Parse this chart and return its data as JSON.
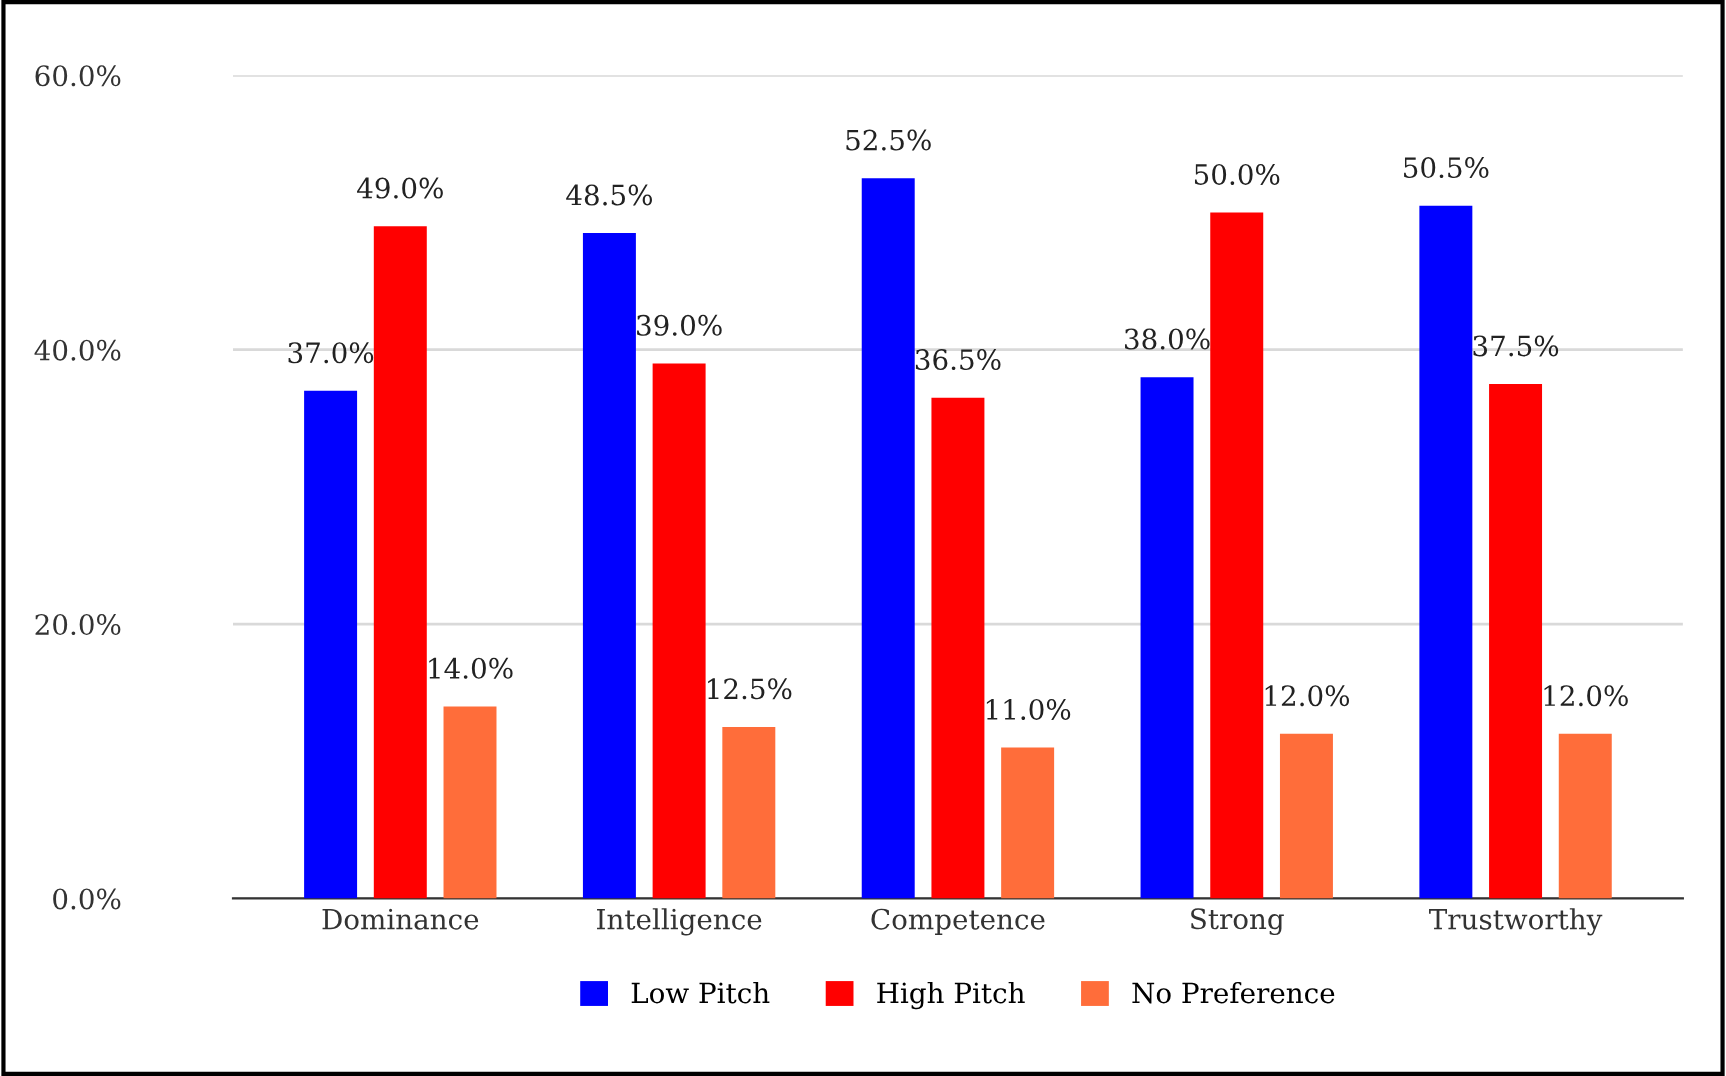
{
  "chart_data": {
    "type": "bar",
    "categories": [
      "Dominance",
      "Intelligence",
      "Competence",
      "Strong",
      "Trustworthy"
    ],
    "series": [
      {
        "name": "Low Pitch",
        "color": "#0000ff",
        "values": [
          37.0,
          48.5,
          52.5,
          38.0,
          50.5
        ],
        "value_labels": [
          "37.0%",
          "48.5%",
          "52.5%",
          "38.0%",
          "50.5%"
        ]
      },
      {
        "name": "High Pitch",
        "color": "#ff0000",
        "values": [
          49.0,
          39.0,
          36.5,
          50.0,
          37.5
        ],
        "value_labels": [
          "49.0%",
          "39.0%",
          "36.5%",
          "50.0%",
          "37.5%"
        ]
      },
      {
        "name": "No Preference",
        "color": "#ff6d3a",
        "values": [
          14.0,
          12.5,
          11.0,
          12.0,
          12.0
        ],
        "value_labels": [
          "14.0%",
          "12.5%",
          "11.0%",
          "12.0%",
          "12.0%"
        ]
      }
    ],
    "ylim": [
      0,
      60
    ],
    "yticks": [
      {
        "value": 0,
        "label": "0.0%"
      },
      {
        "value": 20,
        "label": "20.0%"
      },
      {
        "value": 40,
        "label": "40.0%"
      },
      {
        "value": 60,
        "label": "60.0%"
      }
    ],
    "grid": "y",
    "legend": "bottom"
  }
}
